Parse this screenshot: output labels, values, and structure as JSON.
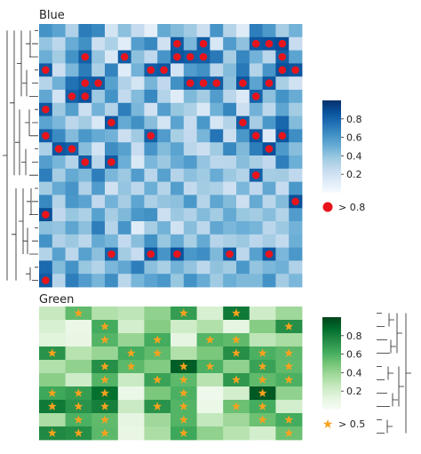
{
  "chart_data": [
    {
      "type": "heatmap",
      "title": "Blue",
      "colormap": "Blues",
      "vmin": 0,
      "vmax": 1,
      "rows": 20,
      "cols": 20,
      "marker": {
        "shape": "circle",
        "color": "#e8141c",
        "threshold": 0.8,
        "legend_label": "> 0.8"
      },
      "colorbar_ticks": [
        0.2,
        0.4,
        0.6,
        0.8
      ],
      "dendrogram_side": "left",
      "values": [
        [
          0.62,
          0.55,
          0.32,
          0.71,
          0.66,
          0.18,
          0.42,
          0.25,
          0.09,
          0.52,
          0.44,
          0.37,
          0.22,
          0.61,
          0.3,
          0.12,
          0.7,
          0.59,
          0.35,
          0.48
        ],
        [
          0.4,
          0.28,
          0.51,
          0.63,
          0.22,
          0.33,
          0.11,
          0.57,
          0.66,
          0.2,
          0.84,
          0.46,
          0.83,
          0.16,
          0.58,
          0.41,
          0.85,
          0.87,
          0.89,
          0.24
        ],
        [
          0.5,
          0.36,
          0.62,
          0.82,
          0.4,
          0.15,
          0.83,
          0.42,
          0.27,
          0.61,
          0.86,
          0.83,
          0.82,
          0.72,
          0.35,
          0.67,
          0.48,
          0.29,
          0.82,
          0.55
        ],
        [
          0.84,
          0.22,
          0.46,
          0.71,
          0.33,
          0.68,
          0.12,
          0.48,
          0.83,
          0.85,
          0.19,
          0.58,
          0.63,
          0.28,
          0.44,
          0.72,
          0.31,
          0.61,
          0.88,
          0.86
        ],
        [
          0.3,
          0.49,
          0.75,
          0.82,
          0.84,
          0.56,
          0.32,
          0.18,
          0.47,
          0.27,
          0.63,
          0.84,
          0.82,
          0.83,
          0.42,
          0.86,
          0.55,
          0.85,
          0.34,
          0.2
        ],
        [
          0.53,
          0.19,
          0.82,
          0.87,
          0.38,
          0.62,
          0.26,
          0.44,
          0.66,
          0.31,
          0.12,
          0.45,
          0.36,
          0.58,
          0.29,
          0.14,
          0.81,
          0.42,
          0.62,
          0.51
        ],
        [
          0.85,
          0.38,
          0.57,
          0.22,
          0.48,
          0.31,
          0.7,
          0.46,
          0.2,
          0.57,
          0.39,
          0.33,
          0.15,
          0.49,
          0.67,
          0.22,
          0.48,
          0.28,
          0.54,
          0.36
        ],
        [
          0.55,
          0.46,
          0.28,
          0.36,
          0.15,
          0.86,
          0.52,
          0.63,
          0.43,
          0.18,
          0.55,
          0.24,
          0.6,
          0.17,
          0.31,
          0.82,
          0.35,
          0.6,
          0.79,
          0.44
        ],
        [
          0.82,
          0.65,
          0.44,
          0.6,
          0.52,
          0.48,
          0.22,
          0.37,
          0.82,
          0.58,
          0.34,
          0.26,
          0.47,
          0.74,
          0.22,
          0.6,
          0.85,
          0.13,
          0.85,
          0.64
        ],
        [
          0.33,
          0.85,
          0.82,
          0.43,
          0.19,
          0.64,
          0.56,
          0.24,
          0.61,
          0.44,
          0.55,
          0.29,
          0.22,
          0.37,
          0.66,
          0.45,
          0.7,
          0.88,
          0.59,
          0.43
        ],
        [
          0.57,
          0.47,
          0.31,
          0.83,
          0.29,
          0.84,
          0.5,
          0.15,
          0.46,
          0.38,
          0.51,
          0.58,
          0.4,
          0.28,
          0.29,
          0.43,
          0.34,
          0.27,
          0.7,
          0.5
        ],
        [
          0.7,
          0.35,
          0.52,
          0.45,
          0.7,
          0.46,
          0.38,
          0.58,
          0.29,
          0.56,
          0.3,
          0.42,
          0.37,
          0.51,
          0.38,
          0.31,
          0.82,
          0.35,
          0.36,
          0.27
        ],
        [
          0.36,
          0.52,
          0.61,
          0.32,
          0.58,
          0.2,
          0.4,
          0.28,
          0.5,
          0.3,
          0.57,
          0.26,
          0.36,
          0.33,
          0.21,
          0.46,
          0.27,
          0.53,
          0.25,
          0.6
        ],
        [
          0.66,
          0.31,
          0.6,
          0.55,
          0.27,
          0.48,
          0.35,
          0.54,
          0.33,
          0.4,
          0.42,
          0.6,
          0.3,
          0.54,
          0.44,
          0.22,
          0.52,
          0.29,
          0.44,
          0.88
        ],
        [
          0.89,
          0.27,
          0.39,
          0.33,
          0.56,
          0.35,
          0.45,
          0.6,
          0.63,
          0.22,
          0.38,
          0.32,
          0.44,
          0.36,
          0.52,
          0.39,
          0.36,
          0.43,
          0.31,
          0.58
        ],
        [
          0.42,
          0.4,
          0.54,
          0.42,
          0.7,
          0.3,
          0.61,
          0.12,
          0.35,
          0.48,
          0.2,
          0.43,
          0.28,
          0.53,
          0.46,
          0.5,
          0.47,
          0.29,
          0.38,
          0.48
        ],
        [
          0.62,
          0.32,
          0.38,
          0.28,
          0.52,
          0.47,
          0.26,
          0.43,
          0.63,
          0.39,
          0.52,
          0.34,
          0.52,
          0.3,
          0.34,
          0.38,
          0.28,
          0.35,
          0.26,
          0.5
        ],
        [
          0.31,
          0.56,
          0.28,
          0.56,
          0.42,
          0.81,
          0.36,
          0.24,
          0.86,
          0.61,
          0.87,
          0.6,
          0.64,
          0.45,
          0.83,
          0.28,
          0.56,
          0.84,
          0.46,
          0.6
        ],
        [
          0.78,
          0.44,
          0.62,
          0.39,
          0.31,
          0.46,
          0.53,
          0.7,
          0.42,
          0.34,
          0.48,
          0.4,
          0.28,
          0.41,
          0.36,
          0.6,
          0.4,
          0.46,
          0.49,
          0.32
        ],
        [
          0.84,
          0.3,
          0.7,
          0.58,
          0.47,
          0.64,
          0.29,
          0.47,
          0.55,
          0.6,
          0.39,
          0.62,
          0.51,
          0.37,
          0.5,
          0.45,
          0.45,
          0.62,
          0.36,
          0.46
        ]
      ]
    },
    {
      "type": "heatmap",
      "title": "Green",
      "colormap": "Greens",
      "vmin": 0,
      "vmax": 1,
      "rows": 10,
      "cols": 10,
      "marker": {
        "shape": "star",
        "color": "#f7a21e",
        "threshold": 0.5,
        "legend_label": "> 0.5"
      },
      "colorbar_ticks": [
        0.2,
        0.4,
        0.6,
        0.8
      ],
      "dendrogram_side": "right",
      "values": [
        [
          0.25,
          0.55,
          0.32,
          0.28,
          0.42,
          0.68,
          0.18,
          0.82,
          0.22,
          0.38
        ],
        [
          0.18,
          0.08,
          0.62,
          0.2,
          0.45,
          0.22,
          0.32,
          0.12,
          0.45,
          0.74
        ],
        [
          0.14,
          0.1,
          0.58,
          0.4,
          0.62,
          0.12,
          0.58,
          0.55,
          0.28,
          0.35
        ],
        [
          0.72,
          0.3,
          0.4,
          0.62,
          0.55,
          0.32,
          0.48,
          0.74,
          0.6,
          0.56
        ],
        [
          0.32,
          0.42,
          0.74,
          0.56,
          0.46,
          0.92,
          0.6,
          0.42,
          0.66,
          0.55
        ],
        [
          0.44,
          0.22,
          0.58,
          0.24,
          0.66,
          0.56,
          0.3,
          0.7,
          0.55,
          0.6
        ],
        [
          0.64,
          0.68,
          0.86,
          0.08,
          0.48,
          0.6,
          0.06,
          0.2,
          0.94,
          0.42
        ],
        [
          0.82,
          0.72,
          0.8,
          0.24,
          0.72,
          0.58,
          0.08,
          0.52,
          0.62,
          0.2
        ],
        [
          0.34,
          0.6,
          0.55,
          0.12,
          0.38,
          0.58,
          0.26,
          0.38,
          0.52,
          0.62
        ],
        [
          0.76,
          0.74,
          0.56,
          0.1,
          0.34,
          0.64,
          0.42,
          0.3,
          0.2,
          0.52
        ]
      ]
    }
  ]
}
